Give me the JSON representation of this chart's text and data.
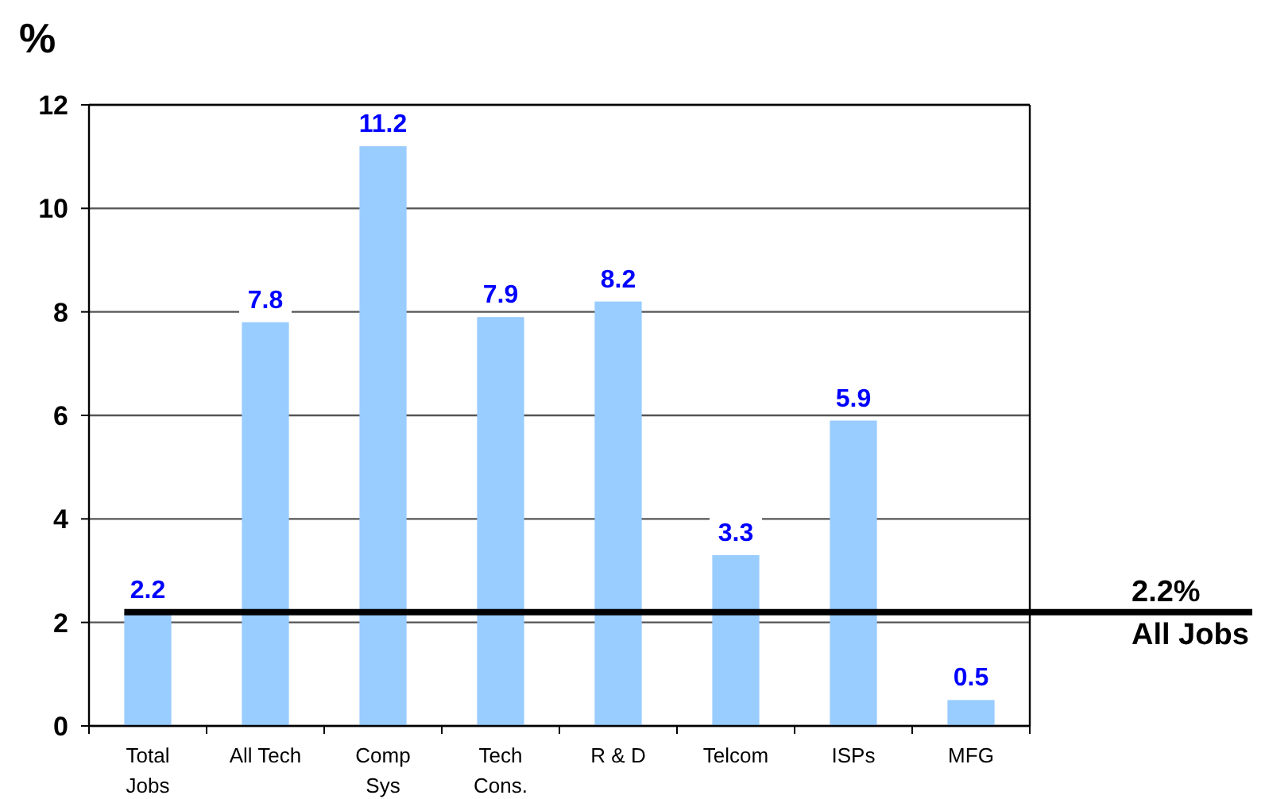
{
  "chart_data": {
    "type": "bar",
    "ylabel": "%",
    "categories": [
      "Total\nJobs",
      "All Tech",
      "Comp\nSys",
      "Tech\nCons.",
      "R & D",
      "Telcom",
      "ISPs",
      "MFG"
    ],
    "values": [
      2.2,
      7.8,
      11.2,
      7.9,
      8.2,
      3.3,
      5.9,
      0.5
    ],
    "color": "#99ccff",
    "ylim": [
      0,
      12
    ],
    "yticks": [
      0,
      2,
      4,
      6,
      8,
      10,
      12
    ],
    "grid": "y",
    "data_labels": true,
    "ref_lines": [
      {
        "axis": "y",
        "value": 2.2,
        "label": "2.2%\nAll Jobs",
        "color": "#000000"
      }
    ]
  }
}
